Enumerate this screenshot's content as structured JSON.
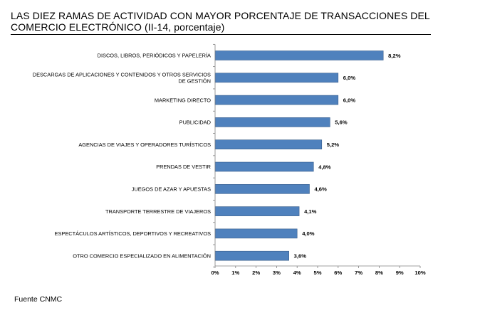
{
  "title": {
    "line1": "LAS DIEZ RAMAS DE ACTIVIDAD CON MAYOR PORCENTAJE DE TRANSACCIONES DEL",
    "line2": "COMERCIO ELECTRÓNICO (II-14, porcentaje)"
  },
  "footer": {
    "source": "Fuente CNMC"
  },
  "chart_data": {
    "type": "bar",
    "orientation": "horizontal",
    "categories": [
      [
        "DISCOS, LIBROS, PERIÓDICOS Y PAPELERÍA"
      ],
      [
        "DESCARGAS DE APLICACIONES Y CONTENIDOS Y OTROS SERVICIOS",
        "DE GESTIÓN"
      ],
      [
        "MARKETING DIRECTO"
      ],
      [
        "PUBLICIDAD"
      ],
      [
        "AGENCIAS DE VIAJES Y OPERADORES TURÍSTICOS"
      ],
      [
        "PRENDAS DE VESTIR"
      ],
      [
        "JUEGOS DE AZAR Y APUESTAS"
      ],
      [
        "TRANSPORTE TERRESTRE DE VIAJEROS"
      ],
      [
        "ESPECTÁCULOS ARTÍSTICOS, DEPORTIVOS Y RECREATIVOS"
      ],
      [
        "OTRO COMERCIO ESPECIALIZADO EN ALIMENTACIÓN"
      ]
    ],
    "values": [
      8.2,
      6.0,
      6.0,
      5.6,
      5.2,
      4.8,
      4.6,
      4.1,
      4.0,
      3.6
    ],
    "value_labels": [
      "8,2%",
      "6,0%",
      "6,0%",
      "5,6%",
      "5,2%",
      "4,8%",
      "4,6%",
      "4,1%",
      "4,0%",
      "3,6%"
    ],
    "xlim": [
      0,
      10
    ],
    "x_ticks": [
      "0%",
      "1%",
      "2%",
      "3%",
      "4%",
      "5%",
      "6%",
      "7%",
      "8%",
      "9%",
      "10%"
    ],
    "bar_color": "#4F81BD",
    "bar_edge_color": "#385D8A",
    "grid": false,
    "legend": "none"
  }
}
